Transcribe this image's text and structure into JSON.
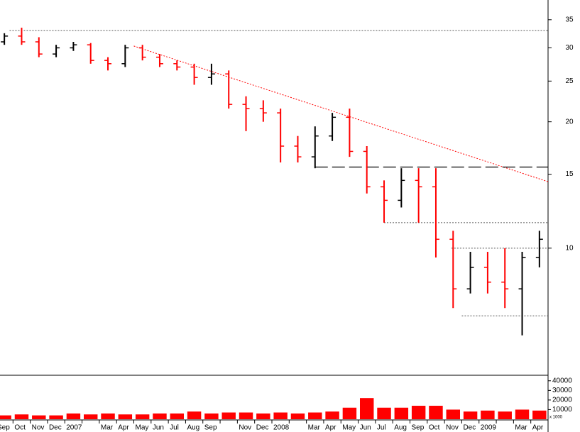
{
  "chart_data": {
    "type": "ohlc",
    "categories": [
      "Sep",
      "Oct",
      "Nov",
      "Dec",
      "2007",
      null,
      "Mar",
      "Apr",
      "May",
      "Jun",
      "Jul",
      "Aug",
      "Sep",
      null,
      "Nov",
      "Dec",
      "2008",
      null,
      "Mar",
      "Apr",
      "May",
      "Jun",
      "Jul",
      "Aug",
      "Sep",
      "Oct",
      "Nov",
      "Dec",
      "2009",
      null,
      "Mar",
      "Apr"
    ],
    "open": [
      31,
      32,
      31,
      29,
      30,
      30.5,
      28,
      27.5,
      30,
      28.5,
      27.5,
      27,
      25.5,
      26,
      22,
      21.5,
      21,
      17.5,
      16.5,
      18.5,
      20.5,
      17,
      14,
      13,
      14.5,
      14,
      10.5,
      8,
      9,
      8.3,
      8,
      9.5
    ],
    "high": [
      32.5,
      33.5,
      31.8,
      30.5,
      31,
      30.8,
      28.5,
      30.5,
      30.5,
      29,
      28,
      27.5,
      27.5,
      26.5,
      23,
      22.5,
      21.5,
      18.5,
      19.5,
      21,
      21.5,
      17.5,
      14.5,
      15.5,
      15.5,
      15.5,
      11,
      9.8,
      9.8,
      10,
      9.8,
      11
    ],
    "low": [
      30.5,
      30.5,
      28.5,
      28.5,
      29.5,
      27.5,
      26.5,
      27,
      28,
      27,
      26.5,
      24.5,
      24.5,
      21.5,
      19,
      20,
      16,
      16,
      15.5,
      18,
      16.5,
      13.5,
      11.5,
      12.5,
      11.5,
      9.5,
      7.2,
      7.8,
      7.8,
      7.2,
      6.2,
      9
    ],
    "close": [
      32,
      31,
      29,
      30,
      30.5,
      28,
      27.5,
      30,
      28.5,
      27.5,
      27,
      25.5,
      26,
      22,
      21.5,
      21,
      17.5,
      16.5,
      18.5,
      20.5,
      17,
      14,
      13,
      14.5,
      14,
      10.5,
      8,
      9,
      8.3,
      8,
      9.5,
      10.5
    ],
    "up_color": "#000000",
    "down_color": "#ff0000",
    "log_scale": true,
    "ylim": [
      5,
      39
    ],
    "yticks": [
      10,
      15,
      20,
      25,
      30,
      35
    ],
    "lines": [
      {
        "values": [
          33,
          33
        ],
        "x": [
          0.8,
          32
        ],
        "color": "#555555",
        "style": "dotted"
      },
      {
        "values": [
          30.3,
          14.4
        ],
        "x": [
          8,
          32
        ],
        "color": "#ff0000",
        "style": "dotted"
      },
      {
        "values": [
          15.6,
          15.6
        ],
        "x": [
          18.5,
          32
        ],
        "color": "#000000",
        "style": "dashed"
      },
      {
        "values": [
          11.5,
          11.5
        ],
        "x": [
          22.5,
          32
        ],
        "color": "#555555",
        "style": "dotted"
      },
      {
        "values": [
          10,
          10
        ],
        "x": [
          26.4,
          32
        ],
        "color": "#555555",
        "style": "dotted"
      },
      {
        "values": [
          6.9,
          6.9
        ],
        "x": [
          27,
          32
        ],
        "color": "#555555",
        "style": "dotted"
      }
    ],
    "volume": {
      "values": [
        4000,
        5000,
        4000,
        4000,
        6000,
        5000,
        6000,
        5000,
        5000,
        6000,
        6000,
        8000,
        6000,
        7000,
        7000,
        6000,
        7000,
        6000,
        7000,
        8000,
        12000,
        22000,
        12000,
        12000,
        14000,
        14000,
        10000,
        8000,
        9000,
        8000,
        10000,
        9000
      ],
      "color": "#ff0000",
      "ylim": [
        0,
        45000
      ],
      "yticks": [
        10000,
        20000,
        30000,
        40000
      ],
      "note": "x 1000"
    }
  }
}
